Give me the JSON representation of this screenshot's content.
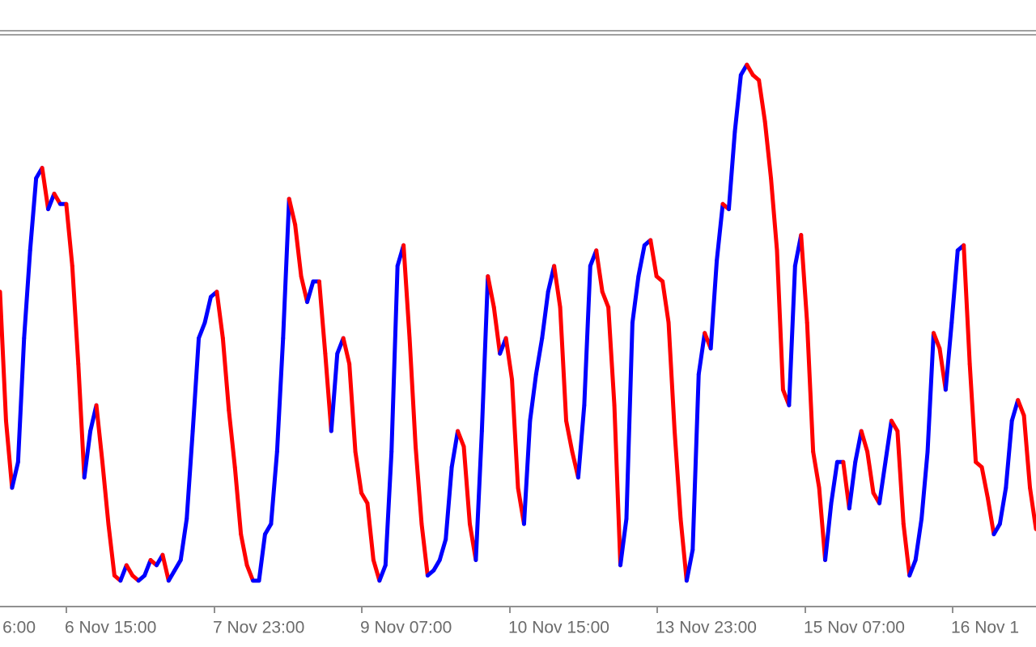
{
  "chart_data": {
    "type": "line",
    "x_labels": [
      "6:00",
      "6 Nov 15:00",
      "7 Nov 23:00",
      "9 Nov 07:00",
      "10 Nov 15:00",
      "13 Nov 23:00",
      "15 Nov 07:00",
      "16 Nov 1"
    ],
    "up_color": "#0000ff",
    "down_color": "#ff0000",
    "ylim": [
      0,
      100
    ],
    "values": [
      56,
      31,
      18,
      23,
      47,
      64,
      78,
      80,
      72,
      75,
      73,
      73,
      61,
      42,
      20,
      29,
      34,
      23,
      11,
      1,
      0,
      3,
      1,
      0,
      1,
      4,
      3,
      5,
      0,
      2,
      4,
      12,
      29,
      47,
      50,
      55,
      56,
      47,
      33,
      22,
      9,
      3,
      0,
      0,
      9,
      11,
      25,
      47,
      74,
      69,
      59,
      54,
      58,
      58,
      44,
      29,
      44,
      47,
      42,
      25,
      17,
      15,
      4,
      0,
      3,
      25,
      61,
      65,
      47,
      26,
      11,
      1,
      2,
      4,
      8,
      22,
      29,
      26,
      11,
      4,
      29,
      59,
      53,
      44,
      47,
      39,
      18,
      11,
      31,
      40,
      47,
      56,
      61,
      53,
      31,
      25,
      20,
      34,
      61,
      64,
      56,
      53,
      34,
      3,
      12,
      50,
      59,
      65,
      66,
      59,
      58,
      50,
      29,
      12,
      0,
      6,
      40,
      48,
      45,
      62,
      73,
      72,
      87,
      98,
      100,
      98,
      97,
      89,
      78,
      64,
      37,
      34,
      61,
      67,
      50,
      25,
      18,
      4,
      15,
      23,
      23,
      14,
      23,
      29,
      25,
      17,
      15,
      23,
      31,
      29,
      11,
      1,
      4,
      12,
      25,
      48,
      45,
      37,
      50,
      64,
      65,
      42,
      23,
      22,
      16,
      9,
      11,
      18,
      31,
      35,
      32,
      18,
      10
    ]
  }
}
